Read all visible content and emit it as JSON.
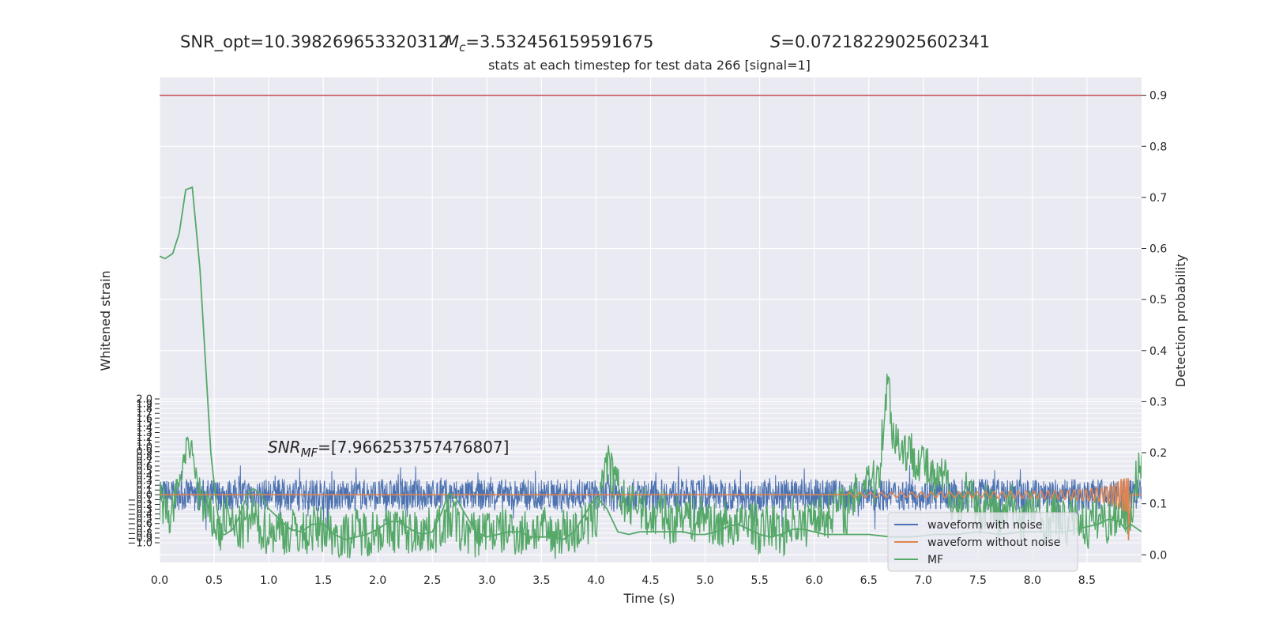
{
  "suptitle": {
    "snr_opt": "SNR_opt=10.398269653320312",
    "mc_symbol": "M",
    "mc_sub": "c",
    "mc_value": "=3.532456159591675",
    "s_symbol": "S",
    "s_value": "=0.07218229025602341"
  },
  "annotation": {
    "symbol": "SNR",
    "sub": "MF",
    "value": "=[7.966253757476807]"
  },
  "chart_data": {
    "type": "line",
    "title": "stats at each timestep for test data 266 [signal=1]",
    "xlabel": "Time (s)",
    "ylabel_left": "Whitened strain",
    "ylabel_right": "Detection probability",
    "xlim": [
      0,
      9
    ],
    "ylim_left": [
      -1.0,
      2.0
    ],
    "ylim_right": [
      -0.015,
      0.935
    ],
    "x_ticks": [
      "0.0",
      "0.5",
      "1.0",
      "1.5",
      "2.0",
      "2.5",
      "3.0",
      "3.5",
      "4.0",
      "4.5",
      "5.0",
      "5.5",
      "6.0",
      "6.5",
      "7.0",
      "7.5",
      "8.0",
      "8.5"
    ],
    "left_ticks": [
      "−1.0",
      "−0.9",
      "−0.8",
      "−0.7",
      "−0.6",
      "−0.5",
      "−0.4",
      "−0.3",
      "−0.2",
      "−0.1",
      "0.0",
      "0.1",
      "0.2",
      "0.3",
      "0.4",
      "0.5",
      "0.6",
      "0.7",
      "0.8",
      "0.9",
      "1.0",
      "1.1",
      "1.2",
      "1.3",
      "1.4",
      "1.5",
      "1.6",
      "1.7",
      "1.8",
      "1.9",
      "2.0"
    ],
    "right_ticks": [
      "0.0",
      "0.1",
      "0.2",
      "0.3",
      "0.4",
      "0.5",
      "0.6",
      "0.7",
      "0.8",
      "0.9"
    ],
    "threshold": 0.9,
    "grid": true,
    "legend_position": "lower-right",
    "series": [
      {
        "name": "waveform with noise",
        "axis": "left",
        "color": "#4c72b0",
        "noise_amplitude": 0.33,
        "spike_min": -0.75,
        "spike_max": 0.62
      },
      {
        "name": "waveform without noise",
        "axis": "left",
        "color": "#dd8452",
        "chirp_start": 6.3,
        "chirp_end": 8.88,
        "peak_amplitude": 0.62
      },
      {
        "name": "MF",
        "axis": "left",
        "color": "#55a868",
        "points": [
          [
            0.0,
            -0.1
          ],
          [
            0.1,
            -0.45
          ],
          [
            0.2,
            0.45
          ],
          [
            0.25,
            1.0
          ],
          [
            0.3,
            0.9
          ],
          [
            0.35,
            0.2
          ],
          [
            0.4,
            -0.3
          ],
          [
            0.5,
            -0.55
          ],
          [
            0.55,
            -0.85
          ],
          [
            0.6,
            -0.4
          ],
          [
            0.7,
            -0.75
          ],
          [
            0.8,
            -0.65
          ],
          [
            0.85,
            -0.45
          ],
          [
            0.9,
            -0.65
          ],
          [
            1.0,
            -0.78
          ],
          [
            1.1,
            -0.7
          ],
          [
            1.2,
            -0.82
          ],
          [
            1.25,
            -0.68
          ],
          [
            1.3,
            -0.85
          ],
          [
            1.4,
            -0.72
          ],
          [
            1.5,
            -0.7
          ],
          [
            1.6,
            -0.8
          ],
          [
            1.7,
            -0.88
          ],
          [
            1.8,
            -0.75
          ],
          [
            1.9,
            -0.8
          ],
          [
            2.0,
            -0.72
          ],
          [
            2.1,
            -0.78
          ],
          [
            2.2,
            -0.68
          ],
          [
            2.3,
            -0.82
          ],
          [
            2.4,
            -0.72
          ],
          [
            2.5,
            -0.78
          ],
          [
            2.6,
            -0.6
          ],
          [
            2.7,
            -0.45
          ],
          [
            2.75,
            -0.8
          ],
          [
            2.8,
            -0.72
          ],
          [
            2.9,
            -0.85
          ],
          [
            3.0,
            -0.68
          ],
          [
            3.1,
            -0.8
          ],
          [
            3.2,
            -0.7
          ],
          [
            3.3,
            -0.82
          ],
          [
            3.4,
            -0.75
          ],
          [
            3.5,
            -0.7
          ],
          [
            3.6,
            -0.88
          ],
          [
            3.7,
            -0.72
          ],
          [
            3.8,
            -0.8
          ],
          [
            3.9,
            -0.62
          ],
          [
            4.0,
            -0.55
          ],
          [
            4.05,
            0.35
          ],
          [
            4.1,
            0.65
          ],
          [
            4.2,
            0.1
          ],
          [
            4.3,
            -0.3
          ],
          [
            4.4,
            -0.15
          ],
          [
            4.5,
            -0.55
          ],
          [
            4.6,
            -0.35
          ],
          [
            4.7,
            -0.6
          ],
          [
            4.8,
            -0.3
          ],
          [
            4.9,
            -0.55
          ],
          [
            5.0,
            -0.4
          ],
          [
            5.1,
            -0.7
          ],
          [
            5.2,
            -0.55
          ],
          [
            5.3,
            -0.75
          ],
          [
            5.4,
            -0.45
          ],
          [
            5.5,
            -0.8
          ],
          [
            5.6,
            -0.6
          ],
          [
            5.7,
            -0.85
          ],
          [
            5.8,
            -0.5
          ],
          [
            5.9,
            -0.7
          ],
          [
            6.0,
            -0.35
          ],
          [
            6.1,
            -0.5
          ],
          [
            6.2,
            -0.2
          ],
          [
            6.3,
            -0.35
          ],
          [
            6.4,
            0.05
          ],
          [
            6.5,
            0.5
          ],
          [
            6.55,
            0.2
          ],
          [
            6.6,
            0.6
          ],
          [
            6.65,
            1.9
          ],
          [
            6.68,
            2.4
          ],
          [
            6.72,
            1.3
          ],
          [
            6.8,
            1.0
          ],
          [
            6.9,
            0.85
          ],
          [
            7.0,
            0.7
          ],
          [
            7.1,
            0.2
          ],
          [
            7.2,
            0.35
          ],
          [
            7.3,
            -0.3
          ],
          [
            7.4,
            0.1
          ],
          [
            7.5,
            -0.45
          ],
          [
            7.6,
            -0.1
          ],
          [
            7.7,
            -0.55
          ],
          [
            7.8,
            -0.2
          ],
          [
            7.9,
            -0.5
          ],
          [
            8.0,
            -0.25
          ],
          [
            8.1,
            -0.6
          ],
          [
            8.2,
            -0.35
          ],
          [
            8.3,
            -0.65
          ],
          [
            8.4,
            -0.4
          ],
          [
            8.5,
            -0.7
          ],
          [
            8.6,
            -0.45
          ],
          [
            8.7,
            -0.55
          ],
          [
            8.8,
            -0.35
          ],
          [
            8.85,
            -0.3
          ],
          [
            8.9,
            -0.4
          ],
          [
            8.95,
            0.3
          ],
          [
            9.0,
            0.6
          ]
        ]
      }
    ],
    "detection_probability": [
      [
        0.0,
        0.585
      ],
      [
        0.05,
        0.58
      ],
      [
        0.12,
        0.59
      ],
      [
        0.18,
        0.63
      ],
      [
        0.24,
        0.715
      ],
      [
        0.3,
        0.72
      ],
      [
        0.37,
        0.56
      ],
      [
        0.42,
        0.38
      ],
      [
        0.47,
        0.2
      ],
      [
        0.52,
        0.1
      ],
      [
        0.56,
        0.04
      ],
      [
        0.6,
        0.04
      ],
      [
        0.67,
        0.05
      ],
      [
        0.72,
        0.07
      ],
      [
        0.8,
        0.115
      ],
      [
        0.86,
        0.13
      ],
      [
        0.92,
        0.12
      ],
      [
        1.0,
        0.09
      ],
      [
        1.1,
        0.07
      ],
      [
        1.2,
        0.05
      ],
      [
        1.3,
        0.045
      ],
      [
        1.4,
        0.06
      ],
      [
        1.5,
        0.06
      ],
      [
        1.6,
        0.04
      ],
      [
        1.7,
        0.03
      ],
      [
        1.8,
        0.035
      ],
      [
        1.9,
        0.04
      ],
      [
        2.0,
        0.05
      ],
      [
        2.1,
        0.065
      ],
      [
        2.2,
        0.065
      ],
      [
        2.3,
        0.05
      ],
      [
        2.4,
        0.04
      ],
      [
        2.5,
        0.045
      ],
      [
        2.58,
        0.08
      ],
      [
        2.65,
        0.12
      ],
      [
        2.72,
        0.11
      ],
      [
        2.8,
        0.08
      ],
      [
        2.9,
        0.045
      ],
      [
        3.0,
        0.035
      ],
      [
        3.1,
        0.04
      ],
      [
        3.2,
        0.045
      ],
      [
        3.3,
        0.045
      ],
      [
        3.4,
        0.035
      ],
      [
        3.5,
        0.035
      ],
      [
        3.6,
        0.035
      ],
      [
        3.7,
        0.03
      ],
      [
        3.8,
        0.045
      ],
      [
        3.9,
        0.08
      ],
      [
        4.0,
        0.115
      ],
      [
        4.1,
        0.09
      ],
      [
        4.2,
        0.045
      ],
      [
        4.3,
        0.04
      ],
      [
        4.4,
        0.045
      ],
      [
        4.5,
        0.045
      ],
      [
        4.6,
        0.045
      ],
      [
        4.7,
        0.045
      ],
      [
        4.8,
        0.045
      ],
      [
        4.9,
        0.04
      ],
      [
        5.0,
        0.04
      ],
      [
        5.1,
        0.045
      ],
      [
        5.2,
        0.055
      ],
      [
        5.3,
        0.06
      ],
      [
        5.4,
        0.05
      ],
      [
        5.5,
        0.04
      ],
      [
        5.6,
        0.035
      ],
      [
        5.7,
        0.04
      ],
      [
        5.8,
        0.05
      ],
      [
        5.9,
        0.05
      ],
      [
        6.0,
        0.045
      ],
      [
        6.1,
        0.04
      ],
      [
        6.3,
        0.04
      ],
      [
        6.5,
        0.04
      ],
      [
        6.7,
        0.035
      ],
      [
        6.9,
        0.035
      ],
      [
        7.1,
        0.04
      ],
      [
        7.3,
        0.04
      ],
      [
        7.5,
        0.045
      ],
      [
        7.7,
        0.04
      ],
      [
        7.9,
        0.045
      ],
      [
        8.1,
        0.045
      ],
      [
        8.3,
        0.045
      ],
      [
        8.5,
        0.055
      ],
      [
        8.6,
        0.06
      ],
      [
        8.7,
        0.07
      ],
      [
        8.8,
        0.065
      ],
      [
        8.85,
        0.05
      ],
      [
        8.9,
        0.06
      ],
      [
        9.0,
        0.045
      ]
    ]
  }
}
